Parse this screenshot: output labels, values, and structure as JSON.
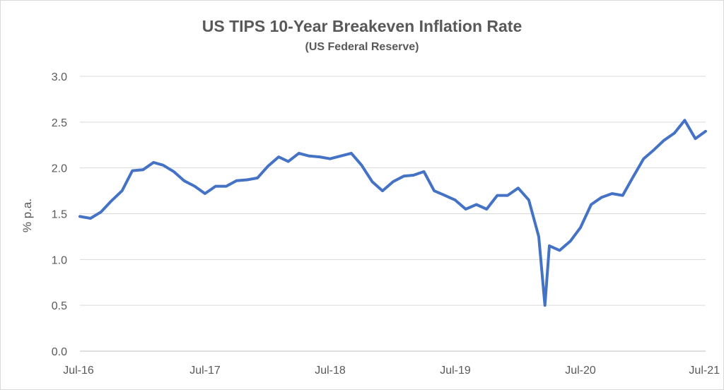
{
  "chart_data": {
    "type": "line",
    "title": "US TIPS 10-Year Breakeven Inflation Rate",
    "subtitle": "(US Federal Reserve)",
    "xlabel": "",
    "ylabel": "% p.a.",
    "x_ticks": [
      "Jul-16",
      "Jul-17",
      "Jul-18",
      "Jul-19",
      "Jul-20",
      "Jul-21"
    ],
    "y_ticks": [
      "0.0",
      "0.5",
      "1.0",
      "1.5",
      "2.0",
      "2.5",
      "3.0"
    ],
    "ylim": [
      0,
      3
    ],
    "xlim": [
      "2016-07",
      "2021-07"
    ],
    "grid": "horizontal",
    "legend": "none",
    "line_color": "#4472c4",
    "series": [
      {
        "x": [
          "2016-07-01",
          "2016-08-01",
          "2016-09-01",
          "2016-10-01",
          "2016-11-01",
          "2016-12-01",
          "2017-01-01",
          "2017-02-01",
          "2017-03-01",
          "2017-04-01",
          "2017-05-01",
          "2017-06-01",
          "2017-07-01",
          "2017-08-01",
          "2017-09-01",
          "2017-10-01",
          "2017-11-01",
          "2017-12-01",
          "2018-01-01",
          "2018-02-01",
          "2018-03-01",
          "2018-04-01",
          "2018-05-01",
          "2018-06-01",
          "2018-07-01",
          "2018-08-01",
          "2018-09-01",
          "2018-10-01",
          "2018-11-01",
          "2018-12-01",
          "2019-01-01",
          "2019-02-01",
          "2019-03-01",
          "2019-04-01",
          "2019-05-01",
          "2019-06-01",
          "2019-07-01",
          "2019-08-01",
          "2019-09-01",
          "2019-10-01",
          "2019-11-01",
          "2019-12-01",
          "2020-01-01",
          "2020-02-01",
          "2020-03-01",
          "2020-03-19",
          "2020-04-01",
          "2020-05-01",
          "2020-06-01",
          "2020-07-01",
          "2020-08-01",
          "2020-09-01",
          "2020-10-01",
          "2020-11-01",
          "2020-12-01",
          "2021-01-01",
          "2021-02-01",
          "2021-03-01",
          "2021-04-01",
          "2021-05-01",
          "2021-06-01",
          "2021-07-01"
        ],
        "values": [
          1.47,
          1.45,
          1.52,
          1.64,
          1.75,
          1.97,
          1.98,
          2.06,
          2.03,
          1.96,
          1.86,
          1.8,
          1.72,
          1.8,
          1.8,
          1.86,
          1.87,
          1.89,
          2.02,
          2.12,
          2.07,
          2.16,
          2.13,
          2.12,
          2.1,
          2.13,
          2.16,
          2.03,
          1.85,
          1.75,
          1.85,
          1.91,
          1.92,
          1.96,
          1.75,
          1.7,
          1.65,
          1.55,
          1.6,
          1.55,
          1.7,
          1.7,
          1.78,
          1.65,
          1.25,
          0.5,
          1.15,
          1.1,
          1.2,
          1.35,
          1.6,
          1.68,
          1.72,
          1.7,
          1.9,
          2.1,
          2.2,
          2.3,
          2.38,
          2.52,
          2.32,
          2.4
        ]
      }
    ]
  }
}
